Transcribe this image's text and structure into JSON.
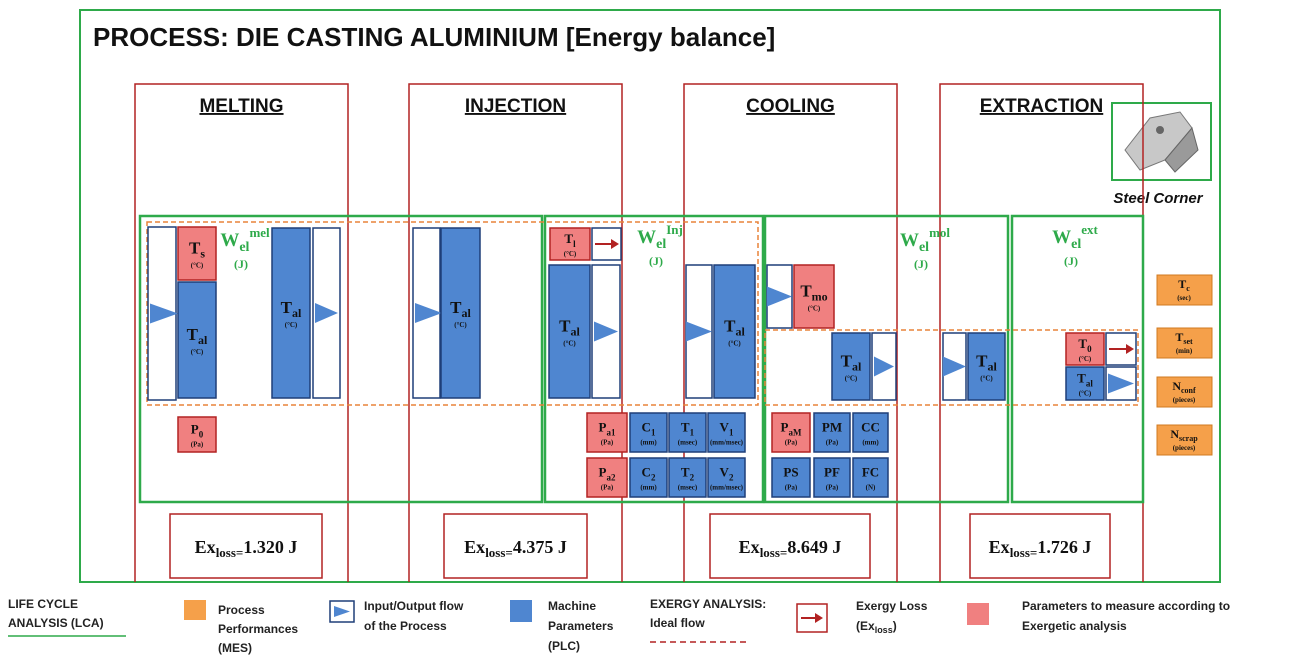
{
  "title": "PROCESS: DIE CASTING ALUMINIUM [Energy balance]",
  "steel_corner": "Steel Corner",
  "stages": [
    {
      "name": "MELTING",
      "exloss": {
        "main": "Ex",
        "sub": "loss=",
        "value": "1.320 J"
      },
      "w": {
        "main": "W",
        "sub": "el",
        "sup": "mel",
        "unit": "(J)"
      }
    },
    {
      "name": "INJECTION",
      "exloss": {
        "main": "Ex",
        "sub": "loss=",
        "value": "4.375 J"
      },
      "w": {
        "main": "W",
        "sub": "el",
        "sup": "Inj",
        "unit": "(J)"
      }
    },
    {
      "name": "COOLING",
      "exloss": {
        "main": "Ex",
        "sub": "loss=",
        "value": "8.649 J"
      },
      "w": {
        "main": "W",
        "sub": "el",
        "sup": "mol",
        "unit": "(J)"
      }
    },
    {
      "name": "EXTRACTION",
      "exloss": {
        "main": "Ex",
        "sub": "loss=",
        "value": "1.726 J"
      },
      "w": {
        "main": "W",
        "sub": "el",
        "sup": "ext",
        "unit": "(J)"
      }
    }
  ],
  "nodes": [
    {
      "main": "T",
      "sub": "s",
      "unit": "(°C)"
    },
    {
      "main": "T",
      "sub": "al",
      "unit": "(°C)"
    },
    {
      "main": "T",
      "sub": "al",
      "unit": "(°C)"
    },
    {
      "main": "P",
      "sub": "0",
      "unit": "(Pa)"
    },
    {
      "main": "T",
      "sub": "al",
      "unit": "(°C)"
    },
    {
      "main": "T",
      "sub": "l",
      "unit": "(°C)"
    },
    {
      "main": "T",
      "sub": "al",
      "unit": "(°C)"
    },
    {
      "main": "T",
      "sub": "al",
      "unit": "(°C)"
    },
    {
      "main": "P",
      "sub": "a1",
      "unit": "(Pa)"
    },
    {
      "main": "C",
      "sub": "1",
      "unit": "(mm)"
    },
    {
      "main": "T",
      "sub": "1",
      "unit": "(msec)"
    },
    {
      "main": "V",
      "sub": "1",
      "unit": "(mm/msec)"
    },
    {
      "main": "P",
      "sub": "a2",
      "unit": "(Pa)"
    },
    {
      "main": "C",
      "sub": "2",
      "unit": "(mm)"
    },
    {
      "main": "T",
      "sub": "2",
      "unit": "(msec)"
    },
    {
      "main": "V",
      "sub": "2",
      "unit": "(mm/msec)"
    },
    {
      "main": "T",
      "sub": "mo",
      "unit": "(°C)"
    },
    {
      "main": "T",
      "sub": "al",
      "unit": "(°C)"
    },
    {
      "main": "P",
      "sub": "aM",
      "unit": "(Pa)"
    },
    {
      "main": "PM",
      "sub": "",
      "unit": "(Pa)"
    },
    {
      "main": "CC",
      "sub": "",
      "unit": "(mm)"
    },
    {
      "main": "PS",
      "sub": "",
      "unit": "(Pa)"
    },
    {
      "main": "PF",
      "sub": "",
      "unit": "(Pa)"
    },
    {
      "main": "FC",
      "sub": "",
      "unit": "(N)"
    },
    {
      "main": "T",
      "sub": "al",
      "unit": "(°C)"
    },
    {
      "main": "T",
      "sub": "0",
      "unit": "(°C)"
    },
    {
      "main": "T",
      "sub": "al",
      "unit": "(°C)"
    }
  ],
  "performances": [
    {
      "main": "T",
      "sub": "c",
      "unit": "(sec)"
    },
    {
      "main": "T",
      "sub": "set",
      "unit": "(min)"
    },
    {
      "main": "N",
      "sub": "conf",
      "unit": "(pieces)"
    },
    {
      "main": "N",
      "sub": "scrap",
      "unit": "(pieces)"
    }
  ],
  "legend": {
    "lca": [
      "LIFE CYCLE",
      "ANALYSIS (LCA)"
    ],
    "mes": [
      "Process",
      "Performances",
      "(MES)"
    ],
    "flow": [
      "Input/Output flow",
      "of the Process"
    ],
    "plc": [
      "Machine",
      "Parameters",
      "(PLC)"
    ],
    "exergy": [
      "EXERGY ANALYSIS:",
      "Ideal flow"
    ],
    "loss": {
      "line": "Exergy Loss",
      "main": "(Ex",
      "sub": "loss",
      "end": ")"
    },
    "measure": [
      "Parameters to measure according to",
      "Exergetic analysis"
    ]
  }
}
